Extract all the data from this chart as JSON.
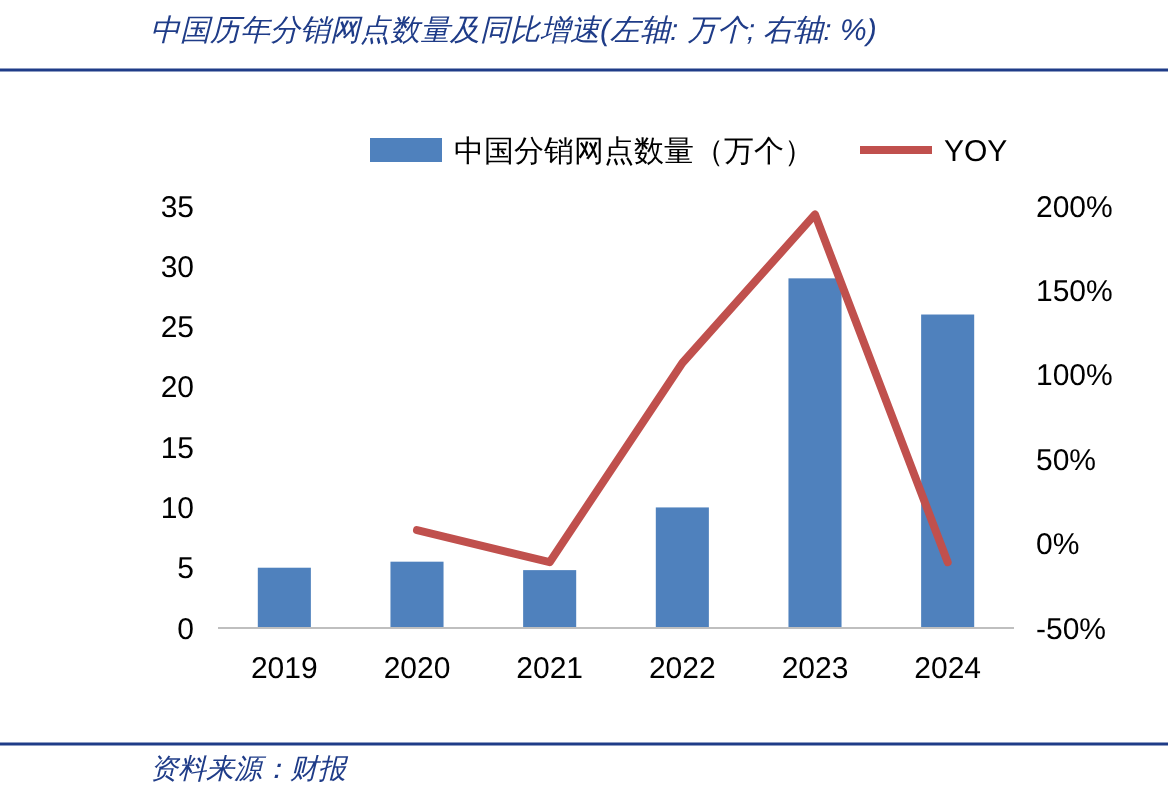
{
  "chart_data": {
    "type": "bar",
    "title": "中国历年分销网点数量及同比增速(左轴: 万个; 右轴: %)",
    "annotations": [
      "资料来源：财报"
    ],
    "categories": [
      "2019",
      "2020",
      "2021",
      "2022",
      "2023",
      "2024"
    ],
    "series": [
      {
        "name": "中国分销网点数量（万个）",
        "color": "#4f81bd",
        "values": [
          5,
          5.5,
          4.8,
          10,
          29,
          26
        ]
      },
      {
        "name": "YOY",
        "type": "line",
        "axis": "y2",
        "color": "#c0504d",
        "values": [
          null,
          8,
          -11,
          107,
          195,
          -11
        ]
      }
    ],
    "ylim": [
      0,
      35
    ],
    "yticks": [
      0,
      5,
      10,
      15,
      20,
      25,
      30,
      35
    ],
    "y2lim": [
      -50,
      200
    ],
    "y2ticks": [
      {
        "value": -50,
        "label": "-50%"
      },
      {
        "value": 0,
        "label": "0%"
      },
      {
        "value": 50,
        "label": "50%"
      },
      {
        "value": 100,
        "label": "100%"
      },
      {
        "value": 150,
        "label": "150%"
      },
      {
        "value": 200,
        "label": "200%"
      }
    ],
    "legend": "top",
    "grid": false,
    "marker": "none",
    "line_style": "solid"
  }
}
